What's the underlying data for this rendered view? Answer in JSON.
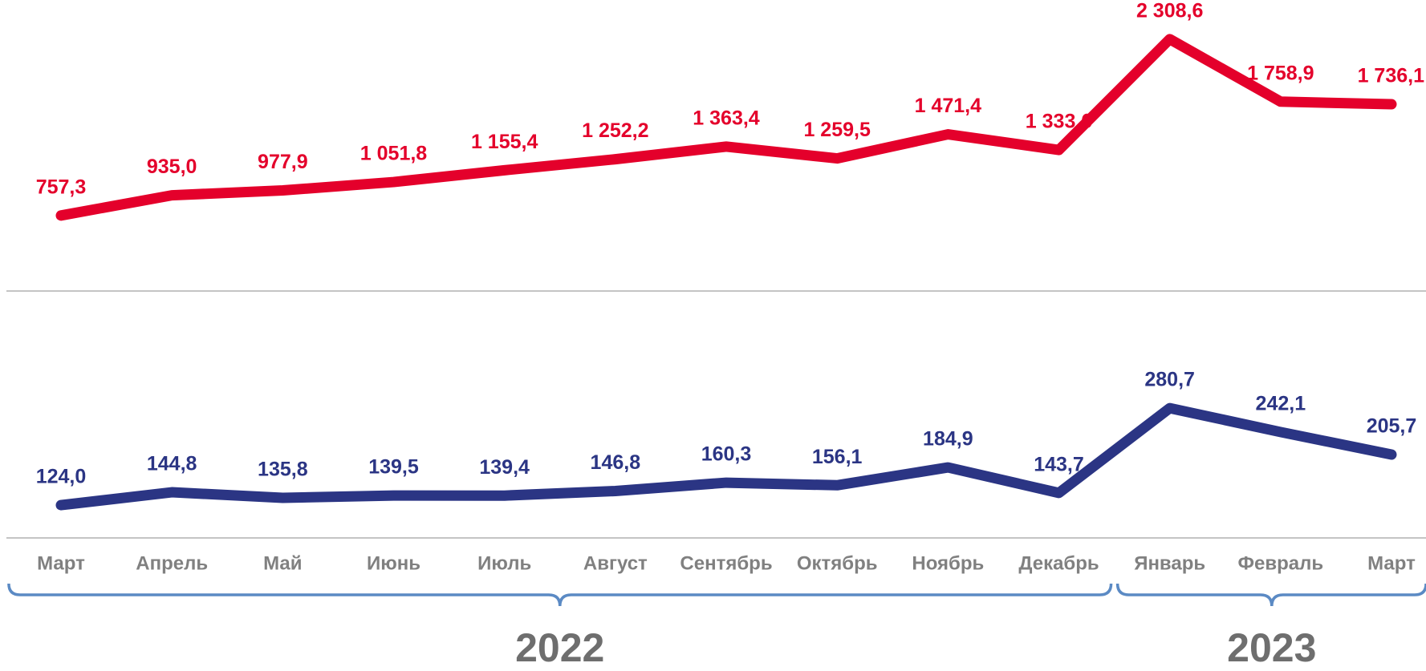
{
  "chart_data": [
    {
      "type": "line",
      "series": [
        {
          "color": "#e4002b",
          "values": [
            757.3,
            935.0,
            977.9,
            1051.8,
            1155.4,
            1252.2,
            1363.4,
            1259.5,
            1471.4,
            1333.6,
            2308.6,
            1758.9,
            1736.1
          ],
          "value_labels": [
            "757,3",
            "935,0",
            "977,9",
            "1 051,8",
            "1 155,4",
            "1 252,2",
            "1 363,4",
            "1 259,5",
            "1 471,4",
            "1 333,6",
            "2 308,6",
            "1 758,9",
            "1 736,1"
          ]
        }
      ],
      "ylim": [
        93,
        2653
      ]
    },
    {
      "type": "line",
      "categories": [
        "Март",
        "Апрель",
        "Май",
        "Июнь",
        "Июль",
        "Август",
        "Сентябрь",
        "Октябрь",
        "Ноябрь",
        "Декабрь",
        "Январь",
        "Февраль",
        "Март"
      ],
      "series": [
        {
          "color": "#2b3584",
          "values": [
            124.0,
            144.8,
            135.8,
            139.5,
            139.4,
            146.8,
            160.3,
            156.1,
            184.9,
            143.7,
            280.7,
            242.1,
            205.7
          ],
          "value_labels": [
            "124,0",
            "144,8",
            "135,8",
            "139,5",
            "139,4",
            "146,8",
            "160,3",
            "156,1",
            "184,9",
            "143,7",
            "280,7",
            "242,1",
            "205,7"
          ]
        }
      ],
      "ylim": [
        71,
        470
      ],
      "x_groups": [
        {
          "label": "2022",
          "count": 10
        },
        {
          "label": "2023",
          "count": 3
        }
      ]
    }
  ]
}
